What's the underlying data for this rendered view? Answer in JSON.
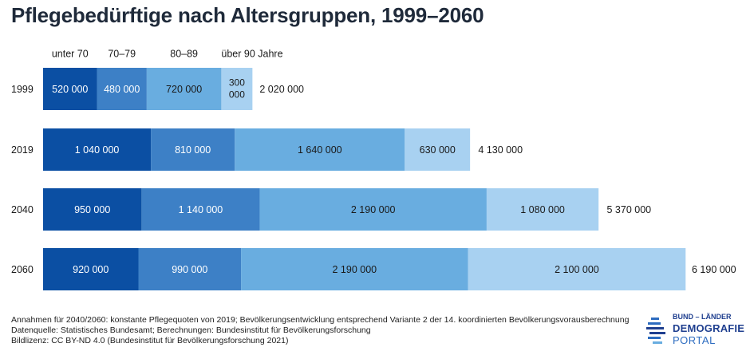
{
  "title": "Pflegebedürftige nach Altersgruppen, 1999–2060",
  "chart_data": {
    "type": "bar",
    "orientation": "horizontal",
    "stacked": true,
    "categories": [
      "1999",
      "2019",
      "2040",
      "2060"
    ],
    "series": [
      {
        "name": "unter 70",
        "values": [
          520000,
          1040000,
          950000,
          920000
        ],
        "color": "#0b4fa3"
      },
      {
        "name": "70–79",
        "values": [
          480000,
          810000,
          1140000,
          990000
        ],
        "color": "#3d80c6"
      },
      {
        "name": "80–89",
        "values": [
          720000,
          1640000,
          2190000,
          2190000
        ],
        "color": "#69ade0"
      },
      {
        "name": "über 90 Jahre",
        "values": [
          300000,
          630000,
          1080000,
          2100000
        ],
        "color": "#a8d1f1"
      }
    ],
    "value_labels": [
      [
        "520 000",
        "480 000",
        "720 000",
        "300 000"
      ],
      [
        "1 040 000",
        "810 000",
        "1 640 000",
        "630 000"
      ],
      [
        "950 000",
        "1 140 000",
        "2 190 000",
        "1 080 000"
      ],
      [
        "920 000",
        "990 000",
        "2 190 000",
        "2 100 000"
      ]
    ],
    "totals": [
      "2 020 000",
      "4 130 000",
      "5 370 000",
      "6 190 000"
    ],
    "total_values": [
      2020000,
      4130000,
      5370000,
      6190000
    ],
    "legend": [
      "unter 70",
      "70–79",
      "80–89",
      "über 90 Jahre"
    ],
    "legend_position": "top"
  },
  "footnotes": [
    "Annahmen für 2040/2060: konstante Pflegequoten von 2019; Bevölkerungsentwicklung entsprechend Variante 2 der 14. koordinierten Bevölkerungsvorausberechnung",
    "Datenquelle: Statistisches Bundesamt; Berechnungen: Bundesinstitut für Bevölkerungsforschung",
    "Bildlizenz: CC BY-ND 4.0 (Bundesinstitut für Bevölkerungsforschung 2021)"
  ],
  "logo": {
    "top": "BUND – LÄNDER",
    "mid": "DEMOGRAFIE",
    "bot": "PORTAL"
  }
}
